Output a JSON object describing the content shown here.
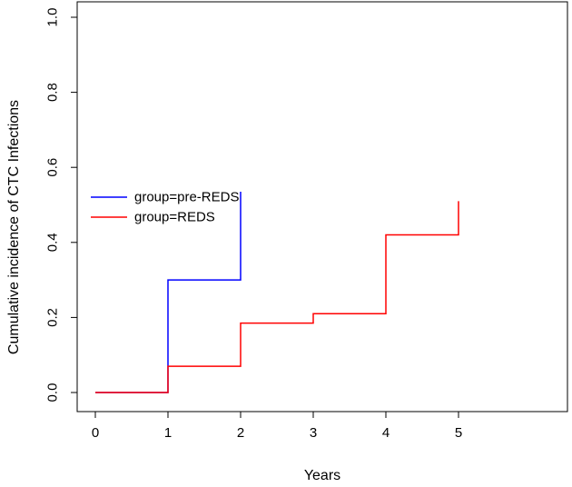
{
  "chart_data": {
    "type": "line",
    "title": "",
    "xlabel": "Years",
    "ylabel": "Cumulative incidence of CTC Infections",
    "xlim": [
      0,
      5
    ],
    "ylim": [
      0,
      1
    ],
    "x_ticks": [
      "0",
      "1",
      "2",
      "3",
      "4",
      "5"
    ],
    "y_ticks": [
      "0.0",
      "0.2",
      "0.4",
      "0.6",
      "0.8",
      "1.0"
    ],
    "grid": false,
    "legend_position": "middle-left",
    "step": true,
    "series": [
      {
        "name": "group=pre-REDS",
        "color": "#0000ff",
        "points": [
          [
            0,
            0
          ],
          [
            1,
            0.3
          ],
          [
            2,
            0.3
          ],
          [
            2,
            0.535
          ]
        ]
      },
      {
        "name": "group=REDS",
        "color": "#ff0000",
        "points": [
          [
            0,
            0
          ],
          [
            1,
            0.07
          ],
          [
            2,
            0.185
          ],
          [
            3,
            0.21
          ],
          [
            4,
            0.42
          ],
          [
            5,
            0.42
          ],
          [
            5,
            0.51
          ]
        ]
      }
    ]
  }
}
